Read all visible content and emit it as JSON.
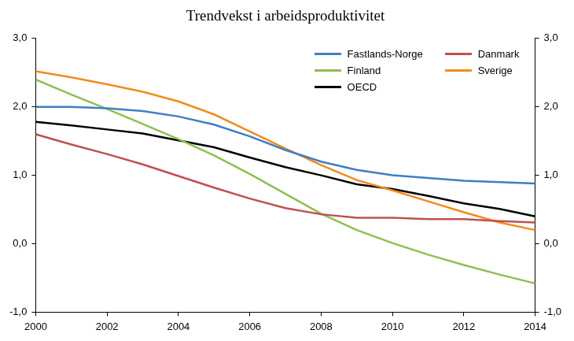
{
  "chart_data": {
    "type": "line",
    "title": "Trendvekst i arbeidsproduktivitet",
    "x": [
      2000,
      2001,
      2002,
      2003,
      2004,
      2005,
      2006,
      2007,
      2008,
      2009,
      2010,
      2011,
      2012,
      2013,
      2014
    ],
    "series": [
      {
        "name": "Fastlands-Norge",
        "color": "#3c7fc4",
        "values": [
          2.0,
          2.0,
          1.98,
          1.94,
          1.86,
          1.74,
          1.57,
          1.37,
          1.2,
          1.08,
          1.0,
          0.96,
          0.92,
          0.9,
          0.88
        ]
      },
      {
        "name": "Danmark",
        "color": "#c0504d",
        "values": [
          1.6,
          1.45,
          1.31,
          1.16,
          0.99,
          0.82,
          0.66,
          0.52,
          0.43,
          0.38,
          0.38,
          0.36,
          0.36,
          0.33,
          0.31
        ]
      },
      {
        "name": "Finland",
        "color": "#8dc04f",
        "values": [
          2.4,
          2.18,
          1.97,
          1.75,
          1.53,
          1.29,
          1.02,
          0.73,
          0.44,
          0.2,
          0.01,
          -0.16,
          -0.31,
          -0.45,
          -0.58
        ]
      },
      {
        "name": "Sverige",
        "color": "#f38b1c",
        "values": [
          2.52,
          2.43,
          2.33,
          2.22,
          2.08,
          1.89,
          1.64,
          1.39,
          1.15,
          0.93,
          0.78,
          0.62,
          0.46,
          0.31,
          0.2
        ]
      },
      {
        "name": "OECD",
        "color": "#000000",
        "values": [
          1.78,
          1.73,
          1.67,
          1.61,
          1.51,
          1.41,
          1.26,
          1.12,
          1.0,
          0.87,
          0.8,
          0.7,
          0.59,
          0.51,
          0.4
        ]
      }
    ],
    "xlim": [
      2000,
      2014
    ],
    "xticks": [
      2000,
      2002,
      2004,
      2006,
      2008,
      2010,
      2012,
      2014
    ],
    "ylim": [
      -1,
      3
    ],
    "yticks": [
      {
        "value": -1,
        "label": "-1,0"
      },
      {
        "value": 0,
        "label": "0,0"
      },
      {
        "value": 1,
        "label": "1,0"
      },
      {
        "value": 2,
        "label": "2,0"
      },
      {
        "value": 3,
        "label": "3,0"
      }
    ],
    "y2lim": [
      -1,
      3
    ],
    "y2ticks": [
      {
        "value": -1,
        "label": "-1,0"
      },
      {
        "value": 0,
        "label": "0,0"
      },
      {
        "value": 1,
        "label": "1,0"
      },
      {
        "value": 2,
        "label": "2,0"
      },
      {
        "value": 3,
        "label": "3,0"
      }
    ],
    "grid": false,
    "legend": "upper right"
  }
}
